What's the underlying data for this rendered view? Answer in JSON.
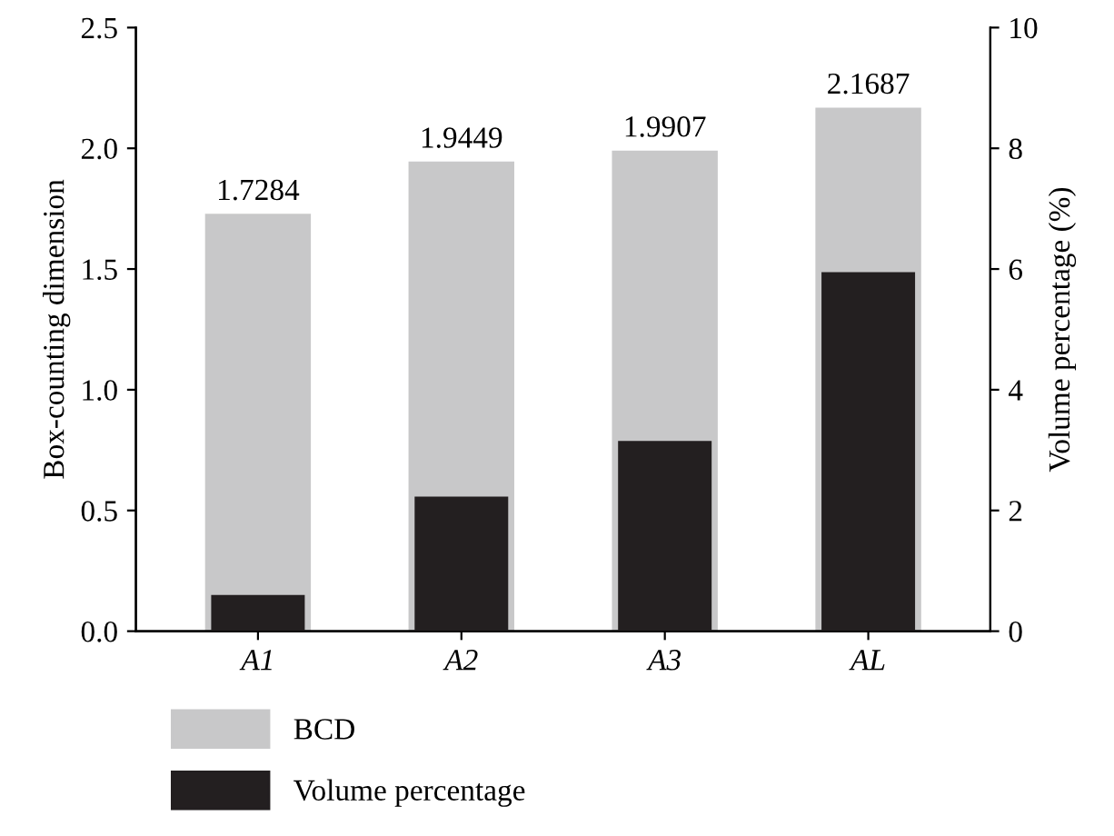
{
  "chart_data": {
    "type": "bar",
    "categories": [
      "A1",
      "A2",
      "A3",
      "AL"
    ],
    "ylabel": "Box-counting dimension",
    "y2label": "Volume percentage (%)",
    "ylim": [
      0,
      2.5
    ],
    "yticks": [
      {
        "value": 0,
        "label": "0.0"
      },
      0.5,
      {
        "value": 1,
        "label": "1.0"
      },
      1.5,
      {
        "value": 2,
        "label": "2.0"
      },
      2.5
    ],
    "y2lim": [
      0,
      10
    ],
    "y2ticks": [
      0,
      2,
      4,
      6,
      8,
      10
    ],
    "series": [
      {
        "name": "BCD",
        "color": "#c8c8c9",
        "values": [
          1.7284,
          1.9449,
          1.9907,
          2.1687
        ],
        "value_labels": [
          "1.7284",
          "1.9449",
          "1.9907",
          "2.1687"
        ]
      },
      {
        "name": "Volume percentage",
        "color": "#231f20",
        "axis": "y2",
        "values": [
          0.6,
          2.23,
          3.15,
          5.95
        ]
      }
    ],
    "legend": "bottom left",
    "grid": false
  }
}
